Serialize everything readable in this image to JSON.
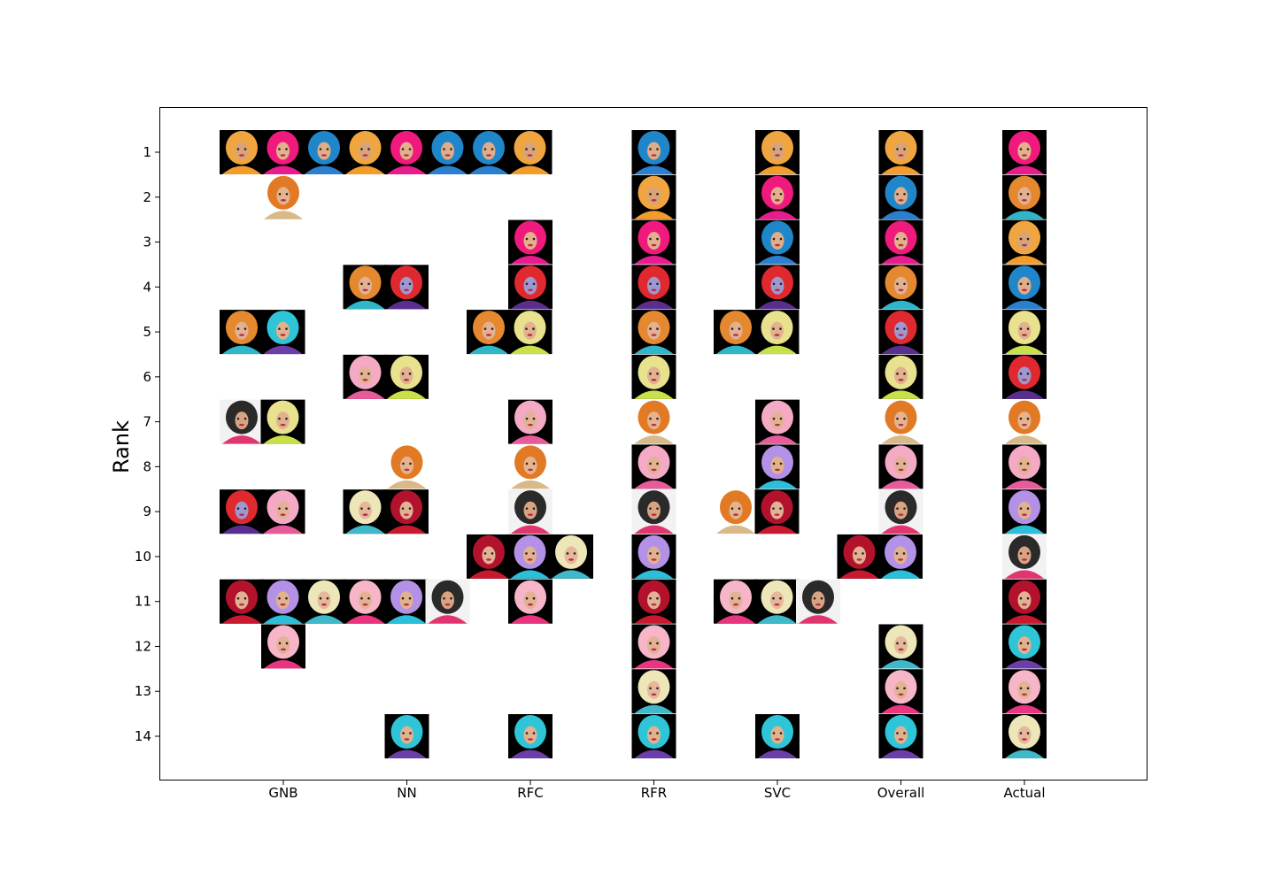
{
  "chart_data": {
    "type": "scatter",
    "title": "",
    "xlabel": "",
    "ylabel": "Rank",
    "y_inverted": true,
    "ylim": [
      1,
      14
    ],
    "grid": false,
    "legend": "none",
    "marker": "contestant portrait thumbnail",
    "categories": [
      "GNB",
      "NN",
      "RFC",
      "RFR",
      "SVC",
      "Overall",
      "Actual"
    ],
    "y_ticks": [
      1,
      2,
      3,
      4,
      5,
      6,
      7,
      8,
      9,
      10,
      11,
      12,
      13,
      14
    ],
    "portrait_palette": {
      "A": {
        "bg": "#000000",
        "hair": "#f0a640",
        "skin": "#d9a37a",
        "outfit": "#f39c2b",
        "icon": "orange-headdress-portrait"
      },
      "B": {
        "bg": "#000000",
        "hair": "#f0197d",
        "skin": "#e4b08c",
        "outfit": "#e81c8c",
        "icon": "pink-hat-portrait"
      },
      "C": {
        "bg": "#000000",
        "hair": "#1f86c9",
        "skin": "#e0ad8a",
        "outfit": "#2b7fd0",
        "icon": "blue-hair-portrait"
      },
      "D": {
        "bg": "#ffffff",
        "hair": "#e27a25",
        "skin": "#e6b38f",
        "outfit": "#d8b98a",
        "icon": "orange-curls-portrait"
      },
      "E": {
        "bg": "#000000",
        "hair": "#e4892f",
        "skin": "#e3b092",
        "outfit": "#2fb7c9",
        "icon": "teal-curls-portrait"
      },
      "F": {
        "bg": "#000000",
        "hair": "#e0292e",
        "skin": "#9f97cf",
        "outfit": "#5a2e8c",
        "icon": "purple-monster-portrait"
      },
      "G": {
        "bg": "#000000",
        "hair": "#e8e28f",
        "skin": "#e2b18e",
        "outfit": "#c9e04a",
        "icon": "blonde-green-portrait"
      },
      "H": {
        "bg": "#000000",
        "hair": "#f4a9c5",
        "skin": "#e3b193",
        "outfit": "#e85b9a",
        "icon": "pink-wig-portrait"
      },
      "I": {
        "bg": "#f2f2f2",
        "hair": "#2a2a2a",
        "skin": "#d8a382",
        "outfit": "#e0356e",
        "icon": "dark-hair-portrait"
      },
      "J": {
        "bg": "#000000",
        "hair": "#b391e6",
        "skin": "#e2b18e",
        "outfit": "#2bbfd9",
        "icon": "lavender-hair-portrait"
      },
      "K": {
        "bg": "#000000",
        "hair": "#b3122d",
        "skin": "#e3b193",
        "outfit": "#c81a2e",
        "icon": "red-sequin-portrait"
      },
      "L": {
        "bg": "#000000",
        "hair": "#ece6b8",
        "skin": "#e6b79a",
        "outfit": "#3fb9c9",
        "icon": "platinum-blonde-portrait"
      },
      "M": {
        "bg": "#000000",
        "hair": "#f7b5c8",
        "skin": "#e3b193",
        "outfit": "#e9357f",
        "icon": "pink-curls-portrait"
      },
      "N": {
        "bg": "#000000",
        "hair": "#2ec5d8",
        "skin": "#e2b18e",
        "outfit": "#6c3fa8",
        "icon": "cyan-feather-portrait"
      }
    },
    "points": [
      {
        "x": "GNB",
        "y": 1,
        "who": [
          "A",
          "B",
          "C",
          "A",
          "B",
          "C",
          "C",
          "A"
        ]
      },
      {
        "x": "GNB",
        "y": 2,
        "who": [
          "D"
        ]
      },
      {
        "x": "GNB",
        "y": 5,
        "who": [
          "E",
          "N"
        ]
      },
      {
        "x": "GNB",
        "y": 7,
        "who": [
          "I",
          "G"
        ]
      },
      {
        "x": "GNB",
        "y": 9,
        "who": [
          "F",
          "H"
        ]
      },
      {
        "x": "GNB",
        "y": 11,
        "who": [
          "K",
          "J",
          "L",
          "M",
          "J",
          "I"
        ]
      },
      {
        "x": "GNB",
        "y": 12,
        "who": [
          "M"
        ]
      },
      {
        "x": "NN",
        "y": 4,
        "who": [
          "E",
          "F"
        ]
      },
      {
        "x": "NN",
        "y": 6,
        "who": [
          "H",
          "G"
        ]
      },
      {
        "x": "NN",
        "y": 8,
        "who": [
          "D"
        ]
      },
      {
        "x": "NN",
        "y": 9,
        "who": [
          "L",
          "K"
        ]
      },
      {
        "x": "NN",
        "y": 14,
        "who": [
          "N"
        ]
      },
      {
        "x": "RFC",
        "y": 3,
        "who": [
          "B"
        ]
      },
      {
        "x": "RFC",
        "y": 4,
        "who": [
          "F"
        ]
      },
      {
        "x": "RFC",
        "y": 5,
        "who": [
          "E",
          "G"
        ]
      },
      {
        "x": "RFC",
        "y": 7,
        "who": [
          "H"
        ]
      },
      {
        "x": "RFC",
        "y": 8,
        "who": [
          "D"
        ]
      },
      {
        "x": "RFC",
        "y": 9,
        "who": [
          "I"
        ]
      },
      {
        "x": "RFC",
        "y": 10,
        "who": [
          "K",
          "J",
          "L"
        ]
      },
      {
        "x": "RFC",
        "y": 11,
        "who": [
          "M"
        ]
      },
      {
        "x": "RFC",
        "y": 14,
        "who": [
          "N"
        ]
      },
      {
        "x": "RFR",
        "y": 1,
        "who": [
          "C"
        ]
      },
      {
        "x": "RFR",
        "y": 2,
        "who": [
          "A"
        ]
      },
      {
        "x": "RFR",
        "y": 3,
        "who": [
          "B"
        ]
      },
      {
        "x": "RFR",
        "y": 4,
        "who": [
          "F"
        ]
      },
      {
        "x": "RFR",
        "y": 5,
        "who": [
          "E"
        ]
      },
      {
        "x": "RFR",
        "y": 6,
        "who": [
          "G"
        ]
      },
      {
        "x": "RFR",
        "y": 7,
        "who": [
          "D"
        ]
      },
      {
        "x": "RFR",
        "y": 8,
        "who": [
          "H"
        ]
      },
      {
        "x": "RFR",
        "y": 9,
        "who": [
          "I"
        ]
      },
      {
        "x": "RFR",
        "y": 10,
        "who": [
          "J"
        ]
      },
      {
        "x": "RFR",
        "y": 11,
        "who": [
          "K"
        ]
      },
      {
        "x": "RFR",
        "y": 12,
        "who": [
          "M"
        ]
      },
      {
        "x": "RFR",
        "y": 13,
        "who": [
          "L"
        ]
      },
      {
        "x": "RFR",
        "y": 14,
        "who": [
          "N"
        ]
      },
      {
        "x": "SVC",
        "y": 1,
        "who": [
          "A"
        ]
      },
      {
        "x": "SVC",
        "y": 2,
        "who": [
          "B"
        ]
      },
      {
        "x": "SVC",
        "y": 3,
        "who": [
          "C"
        ]
      },
      {
        "x": "SVC",
        "y": 4,
        "who": [
          "F"
        ]
      },
      {
        "x": "SVC",
        "y": 5,
        "who": [
          "E",
          "G"
        ]
      },
      {
        "x": "SVC",
        "y": 7,
        "who": [
          "H"
        ]
      },
      {
        "x": "SVC",
        "y": 8,
        "who": [
          "J"
        ]
      },
      {
        "x": "SVC",
        "y": 9,
        "who": [
          "D",
          "K"
        ]
      },
      {
        "x": "SVC",
        "y": 11,
        "who": [
          "M",
          "L",
          "I"
        ]
      },
      {
        "x": "SVC",
        "y": 14,
        "who": [
          "N"
        ]
      },
      {
        "x": "Overall",
        "y": 1,
        "who": [
          "A"
        ]
      },
      {
        "x": "Overall",
        "y": 2,
        "who": [
          "C"
        ]
      },
      {
        "x": "Overall",
        "y": 3,
        "who": [
          "B"
        ]
      },
      {
        "x": "Overall",
        "y": 4,
        "who": [
          "E"
        ]
      },
      {
        "x": "Overall",
        "y": 5,
        "who": [
          "F"
        ]
      },
      {
        "x": "Overall",
        "y": 6,
        "who": [
          "G"
        ]
      },
      {
        "x": "Overall",
        "y": 7,
        "who": [
          "D"
        ]
      },
      {
        "x": "Overall",
        "y": 8,
        "who": [
          "H"
        ]
      },
      {
        "x": "Overall",
        "y": 9,
        "who": [
          "I"
        ]
      },
      {
        "x": "Overall",
        "y": 10,
        "who": [
          "K",
          "J"
        ]
      },
      {
        "x": "Overall",
        "y": 12,
        "who": [
          "L"
        ]
      },
      {
        "x": "Overall",
        "y": 13,
        "who": [
          "M"
        ]
      },
      {
        "x": "Overall",
        "y": 14,
        "who": [
          "N"
        ]
      },
      {
        "x": "Actual",
        "y": 1,
        "who": [
          "B"
        ]
      },
      {
        "x": "Actual",
        "y": 2,
        "who": [
          "E"
        ]
      },
      {
        "x": "Actual",
        "y": 3,
        "who": [
          "A"
        ]
      },
      {
        "x": "Actual",
        "y": 4,
        "who": [
          "C"
        ]
      },
      {
        "x": "Actual",
        "y": 5,
        "who": [
          "G"
        ]
      },
      {
        "x": "Actual",
        "y": 6,
        "who": [
          "F"
        ]
      },
      {
        "x": "Actual",
        "y": 7,
        "who": [
          "D"
        ]
      },
      {
        "x": "Actual",
        "y": 8,
        "who": [
          "H"
        ]
      },
      {
        "x": "Actual",
        "y": 9,
        "who": [
          "J"
        ]
      },
      {
        "x": "Actual",
        "y": 10,
        "who": [
          "I"
        ]
      },
      {
        "x": "Actual",
        "y": 11,
        "who": [
          "K"
        ]
      },
      {
        "x": "Actual",
        "y": 12,
        "who": [
          "N"
        ]
      },
      {
        "x": "Actual",
        "y": 13,
        "who": [
          "M"
        ]
      },
      {
        "x": "Actual",
        "y": 14,
        "who": [
          "L"
        ]
      }
    ]
  }
}
